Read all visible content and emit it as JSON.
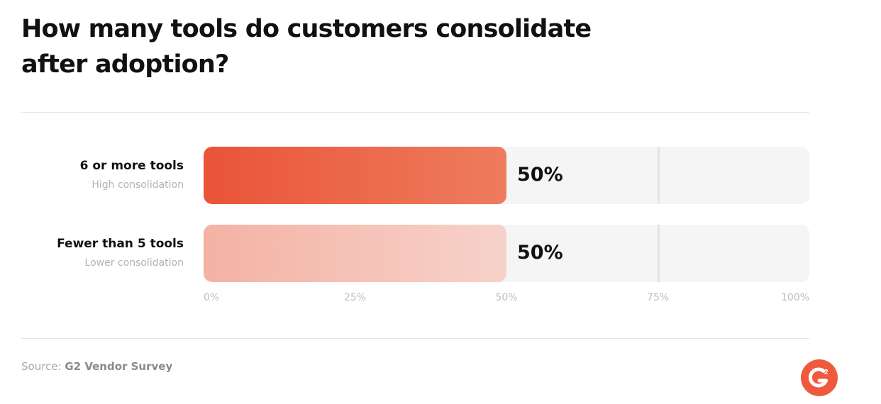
{
  "title": "How many tools do customers consolidate after adoption?",
  "source": {
    "prefix": "Source:",
    "name": "G2 Vendor Survey"
  },
  "logo": {
    "icon": "g2-logo-icon",
    "color": "#ef5a3c"
  },
  "chart_data": {
    "type": "bar",
    "orientation": "horizontal",
    "categories": [
      "6 or more tools",
      "Fewer than 5 tools"
    ],
    "category_subtitles": [
      "High consolidation",
      "Lower consolidation"
    ],
    "values": [
      50,
      50
    ],
    "value_labels": [
      "50%",
      "50%"
    ],
    "colors": [
      "#ea5438",
      "#f4b2a4"
    ],
    "xlim": [
      0,
      100
    ],
    "xticks": [
      0,
      25,
      50,
      75,
      100
    ],
    "xtick_labels": [
      "0%",
      "25%",
      "50%",
      "75%",
      "100%"
    ],
    "grid": true
  }
}
